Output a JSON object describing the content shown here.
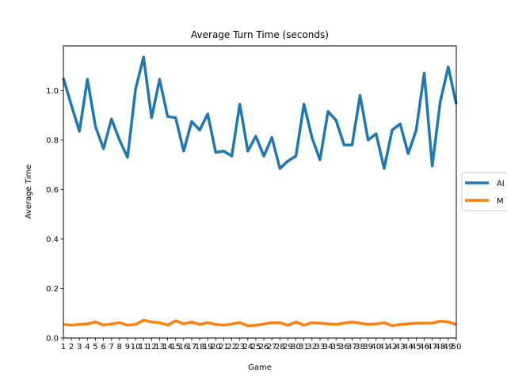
{
  "chart_data": {
    "type": "line",
    "title": "Average Turn Time (seconds)",
    "xlabel": "Game",
    "ylabel": "Average Time",
    "x": [
      1,
      2,
      3,
      4,
      5,
      6,
      7,
      8,
      9,
      10,
      11,
      12,
      13,
      14,
      15,
      16,
      17,
      18,
      19,
      20,
      21,
      22,
      23,
      24,
      25,
      26,
      27,
      28,
      29,
      30,
      31,
      32,
      33,
      34,
      35,
      36,
      37,
      38,
      39,
      40,
      41,
      42,
      43,
      44,
      45,
      46,
      47,
      48,
      49,
      50
    ],
    "xlim": [
      1,
      50
    ],
    "ylim": [
      0,
      1.18
    ],
    "yticks": [
      0.0,
      0.2,
      0.4,
      0.6,
      0.8,
      1.0
    ],
    "ytick_labels": [
      "0.0",
      "0.2",
      "0.4",
      "0.6",
      "0.8",
      "1.0"
    ],
    "grid": false,
    "legend_placement": "right, outside, clipped",
    "series": [
      {
        "name": "Al",
        "color": "#1f77b4",
        "values": [
          1.05,
          0.94,
          0.835,
          1.045,
          0.855,
          0.765,
          0.885,
          0.8,
          0.73,
          1.005,
          1.135,
          0.89,
          1.045,
          0.895,
          0.89,
          0.755,
          0.875,
          0.84,
          0.905,
          0.75,
          0.755,
          0.735,
          0.945,
          0.755,
          0.815,
          0.735,
          0.81,
          0.685,
          0.715,
          0.735,
          0.945,
          0.81,
          0.72,
          0.915,
          0.88,
          0.78,
          0.78,
          0.98,
          0.8,
          0.825,
          0.685,
          0.84,
          0.865,
          0.745,
          0.84,
          1.07,
          0.695,
          0.955,
          1.095,
          0.945
        ]
      },
      {
        "name": "M",
        "color": "#ff7f0e",
        "values": [
          0.055,
          0.052,
          0.055,
          0.057,
          0.065,
          0.052,
          0.057,
          0.062,
          0.052,
          0.055,
          0.072,
          0.065,
          0.062,
          0.052,
          0.07,
          0.057,
          0.065,
          0.055,
          0.062,
          0.055,
          0.052,
          0.057,
          0.062,
          0.05,
          0.052,
          0.057,
          0.062,
          0.062,
          0.052,
          0.065,
          0.052,
          0.062,
          0.06,
          0.057,
          0.055,
          0.06,
          0.065,
          0.06,
          0.055,
          0.057,
          0.062,
          0.05,
          0.055,
          0.057,
          0.06,
          0.06,
          0.06,
          0.068,
          0.065,
          0.055
        ]
      }
    ]
  }
}
